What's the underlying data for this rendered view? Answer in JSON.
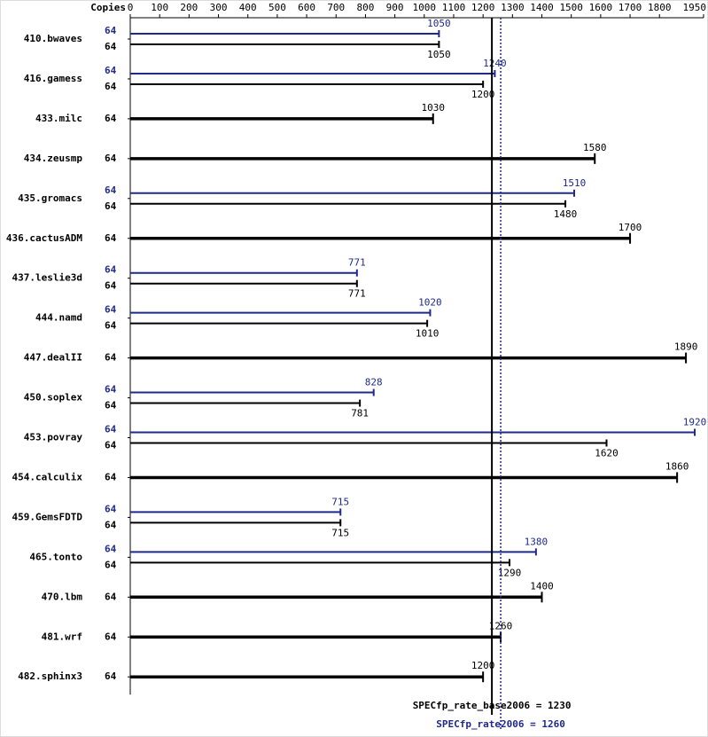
{
  "chart_data": {
    "type": "bar",
    "x_label": "Copies",
    "categories": [
      "410.bwaves",
      "416.gamess",
      "433.milc",
      "434.zeusmp",
      "435.gromacs",
      "436.cactusADM",
      "437.leslie3d",
      "444.namd",
      "447.dealII",
      "450.soplex",
      "453.povray",
      "454.calculix",
      "459.GemsFDTD",
      "465.tonto",
      "470.lbm",
      "481.wrf",
      "482.sphinx3"
    ],
    "series": [
      {
        "color": "#1f2a8a",
        "copies": [
          64,
          64,
          null,
          null,
          64,
          null,
          64,
          64,
          null,
          64,
          64,
          null,
          64,
          64,
          null,
          null,
          null
        ],
        "values": [
          1050,
          1240,
          null,
          null,
          1510,
          null,
          771,
          1020,
          null,
          828,
          1920,
          null,
          715,
          1380,
          null,
          null,
          null
        ]
      },
      {
        "color": "#000000",
        "copies": [
          64,
          64,
          64,
          64,
          64,
          64,
          64,
          64,
          64,
          64,
          64,
          64,
          64,
          64,
          64,
          64,
          64
        ],
        "values": [
          1050,
          1200,
          1030,
          1580,
          1480,
          1700,
          771,
          1010,
          1890,
          781,
          1620,
          1860,
          715,
          1290,
          1400,
          1260,
          1200
        ]
      }
    ],
    "reference_lines": [
      {
        "label": "SPECfp_rate_base2006 = 1230",
        "value": 1230,
        "color": "#000000",
        "dash": false
      },
      {
        "label": "SPECfp_rate2006 = 1260",
        "value": 1260,
        "color": "#1f2a8a",
        "dash": true
      }
    ],
    "xlim": [
      0,
      1950
    ],
    "xticks": [
      0,
      100,
      200,
      300,
      400,
      500,
      600,
      700,
      800,
      900,
      1000,
      1100,
      1200,
      1300,
      1400,
      1500,
      1600,
      1700,
      1800,
      1950
    ]
  }
}
